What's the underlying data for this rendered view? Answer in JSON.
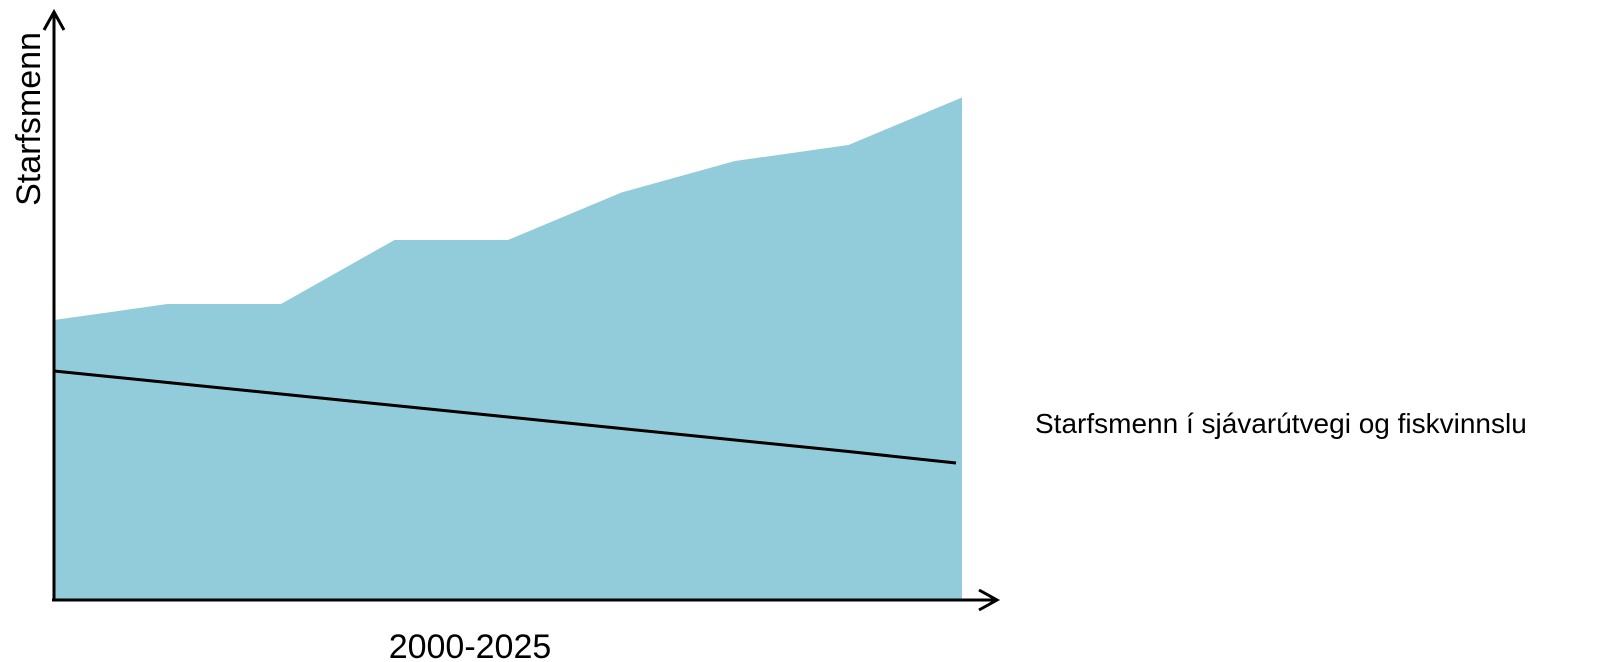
{
  "chart_data": {
    "type": "area",
    "title": "",
    "xlabel": "2000-2025",
    "ylabel": "Starfsmenn",
    "x": [
      0,
      1,
      2,
      3,
      4,
      5,
      6,
      7,
      8
    ],
    "xlim": [
      0,
      8
    ],
    "ylim": [
      0,
      100
    ],
    "grid": false,
    "legend_position": "right",
    "series": [
      {
        "type": "area",
        "values": [
          56,
          59.2,
          59.2,
          72,
          72,
          81.5,
          87.8,
          91,
          100.5
        ],
        "color": "#92cbd9"
      },
      {
        "type": "line",
        "values": [
          45.8,
          43.5,
          41.2,
          38.9,
          36.6,
          34.3,
          32,
          29.7,
          27.4
        ],
        "color": "#000000"
      }
    ],
    "annotation": "Starfsmenn í sjávarútvegi og fiskvinnslu"
  }
}
